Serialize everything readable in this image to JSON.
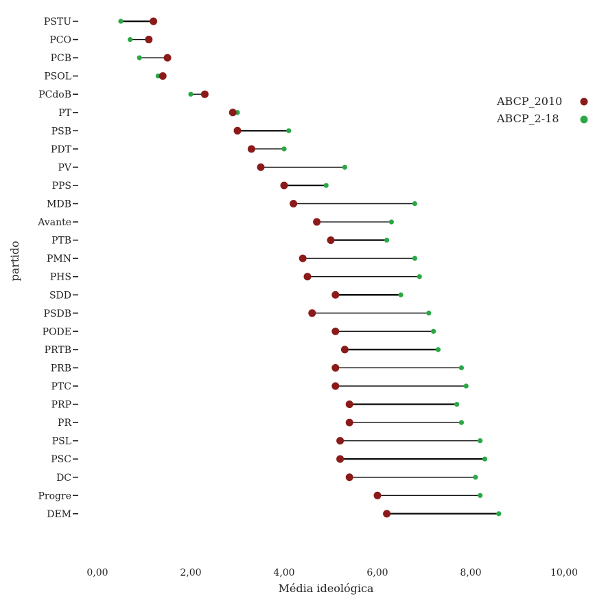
{
  "chart_data": {
    "type": "dumbbell",
    "xlabel": "Média ideológica",
    "ylabel": "partido",
    "xlim": [
      0,
      10
    ],
    "xticks": [
      "0,00",
      "2,00",
      "4,00",
      "6,00",
      "8,00",
      "10,00"
    ],
    "grid": false,
    "legend_position": "top-right",
    "categories": [
      "PSTU",
      "PCO",
      "PCB",
      "PSOL",
      "PCdoB",
      "PT",
      "PSB",
      "PDT",
      "PV",
      "PPS",
      "MDB",
      "Avante",
      "PTB",
      "PMN",
      "PHS",
      "SDD",
      "PSDB",
      "PODE",
      "PRTB",
      "PRB",
      "PTC",
      "PRP",
      "PR",
      "PSL",
      "PSC",
      "DC",
      "Progre",
      "DEM"
    ],
    "series": [
      {
        "name": "ABCP_2010",
        "color": "#8b1a1a",
        "values": [
          1.2,
          1.1,
          1.5,
          1.4,
          2.3,
          2.9,
          3.0,
          3.3,
          3.5,
          4.0,
          4.2,
          4.7,
          5.0,
          4.4,
          4.5,
          5.1,
          4.6,
          5.1,
          5.3,
          5.1,
          5.1,
          5.4,
          5.4,
          5.2,
          5.2,
          5.4,
          6.0,
          6.2
        ]
      },
      {
        "name": "ABCP_2-18",
        "color": "#2aa845",
        "values": [
          0.5,
          0.7,
          0.9,
          1.3,
          2.0,
          3.0,
          4.1,
          4.0,
          5.3,
          4.9,
          6.8,
          6.3,
          6.2,
          6.8,
          6.9,
          6.5,
          7.1,
          7.2,
          7.3,
          7.8,
          7.9,
          7.7,
          7.8,
          8.2,
          8.3,
          8.1,
          8.2,
          8.6
        ]
      }
    ]
  }
}
